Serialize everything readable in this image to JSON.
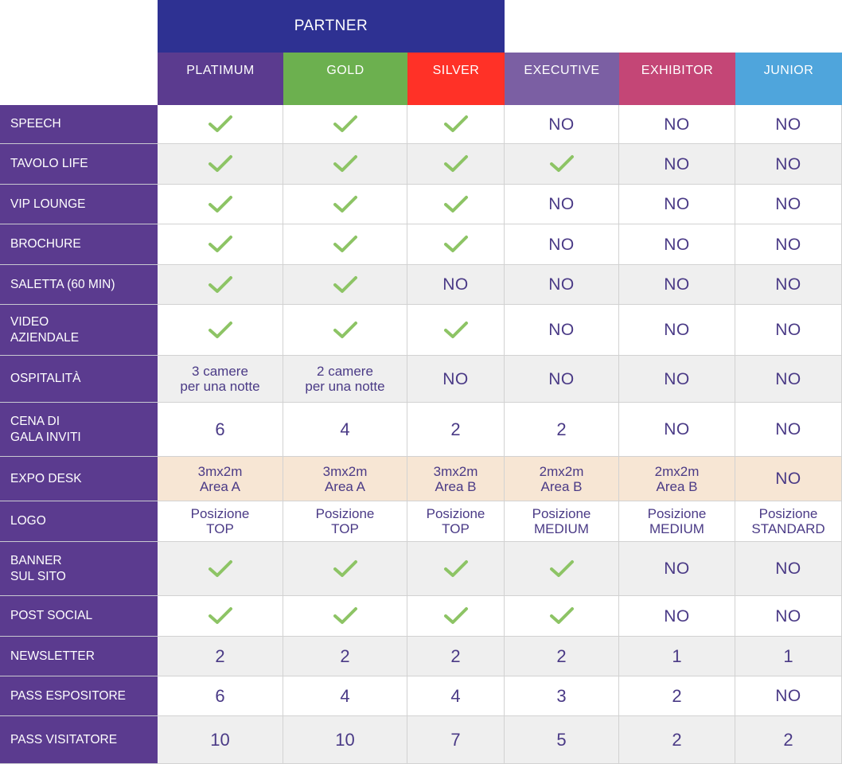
{
  "header": {
    "partner_label": "PARTNER",
    "partner_color": "#2e3192",
    "columns": [
      {
        "label": "PLATIMUM",
        "color": "#5b3b8f"
      },
      {
        "label": "GOLD",
        "color": "#6cb04f"
      },
      {
        "label": "SILVER",
        "color": "#ff3127"
      },
      {
        "label": "EXECUTIVE",
        "color": "#7b5fa3"
      },
      {
        "label": "EXHIBITOR",
        "color": "#c44676"
      },
      {
        "label": "JUNIOR",
        "color": "#4fa5dc"
      }
    ]
  },
  "colors": {
    "row_header": "#5b3b8f",
    "check": "#8dc465",
    "text": "#4a3a86",
    "row_white": "#ffffff",
    "row_grey": "#efefef",
    "row_peach": "#f7e6d4"
  },
  "icons": {
    "check": "check-icon"
  },
  "rows": [
    {
      "label": "SPEECH",
      "shade": "white",
      "cells": [
        "check",
        "check",
        "check",
        "NO",
        "NO",
        "NO"
      ]
    },
    {
      "label": "TAVOLO LIFE",
      "shade": "grey",
      "cells": [
        "check",
        "check",
        "check",
        "check",
        "NO",
        "NO"
      ]
    },
    {
      "label": "VIP LOUNGE",
      "shade": "white",
      "cells": [
        "check",
        "check",
        "check",
        "NO",
        "NO",
        "NO"
      ]
    },
    {
      "label": "BROCHURE",
      "shade": "white",
      "cells": [
        "check",
        "check",
        "check",
        "NO",
        "NO",
        "NO"
      ]
    },
    {
      "label": "SALETTA (60 MIN)",
      "shade": "grey",
      "cells": [
        "check",
        "check",
        "NO",
        "NO",
        "NO",
        "NO"
      ]
    },
    {
      "label": "VIDEO\nAZIENDALE",
      "shade": "white",
      "cells": [
        "check",
        "check",
        "check",
        "NO",
        "NO",
        "NO"
      ]
    },
    {
      "label": "OSPITALITÀ",
      "shade": "grey",
      "cells": [
        "3 camere\nper una notte",
        "2 camere\nper una notte",
        "NO",
        "NO",
        "NO",
        "NO"
      ]
    },
    {
      "label": "CENA DI\nGALA INVITI",
      "shade": "white",
      "cells": [
        "6",
        "4",
        "2",
        "2",
        "NO",
        "NO"
      ]
    },
    {
      "label": "EXPO DESK",
      "shade": "peach",
      "cells": [
        "3mx2m\nArea A",
        "3mx2m\nArea A",
        "3mx2m\nArea B",
        "2mx2m\nArea B",
        "2mx2m\nArea B",
        "NO"
      ]
    },
    {
      "label": "LOGO",
      "shade": "white",
      "cells": [
        "Posizione\nTOP",
        "Posizione\nTOP",
        "Posizione\nTOP",
        "Posizione\nMEDIUM",
        "Posizione\nMEDIUM",
        "Posizione\nSTANDARD"
      ]
    },
    {
      "label": "BANNER\nSUL SITO",
      "shade": "grey",
      "cells": [
        "check",
        "check",
        "check",
        "check",
        "NO",
        "NO"
      ]
    },
    {
      "label": "POST SOCIAL",
      "shade": "white",
      "cells": [
        "check",
        "check",
        "check",
        "check",
        "NO",
        "NO"
      ]
    },
    {
      "label": "NEWSLETTER",
      "shade": "grey",
      "cells": [
        "2",
        "2",
        "2",
        "2",
        "1",
        "1"
      ]
    },
    {
      "label": "PASS ESPOSITORE",
      "shade": "white",
      "cells": [
        "6",
        "4",
        "4",
        "3",
        "2",
        "NO"
      ]
    },
    {
      "label": "PASS VISITATORE",
      "shade": "grey",
      "cells": [
        "10",
        "10",
        "7",
        "5",
        "2",
        "2"
      ]
    }
  ]
}
